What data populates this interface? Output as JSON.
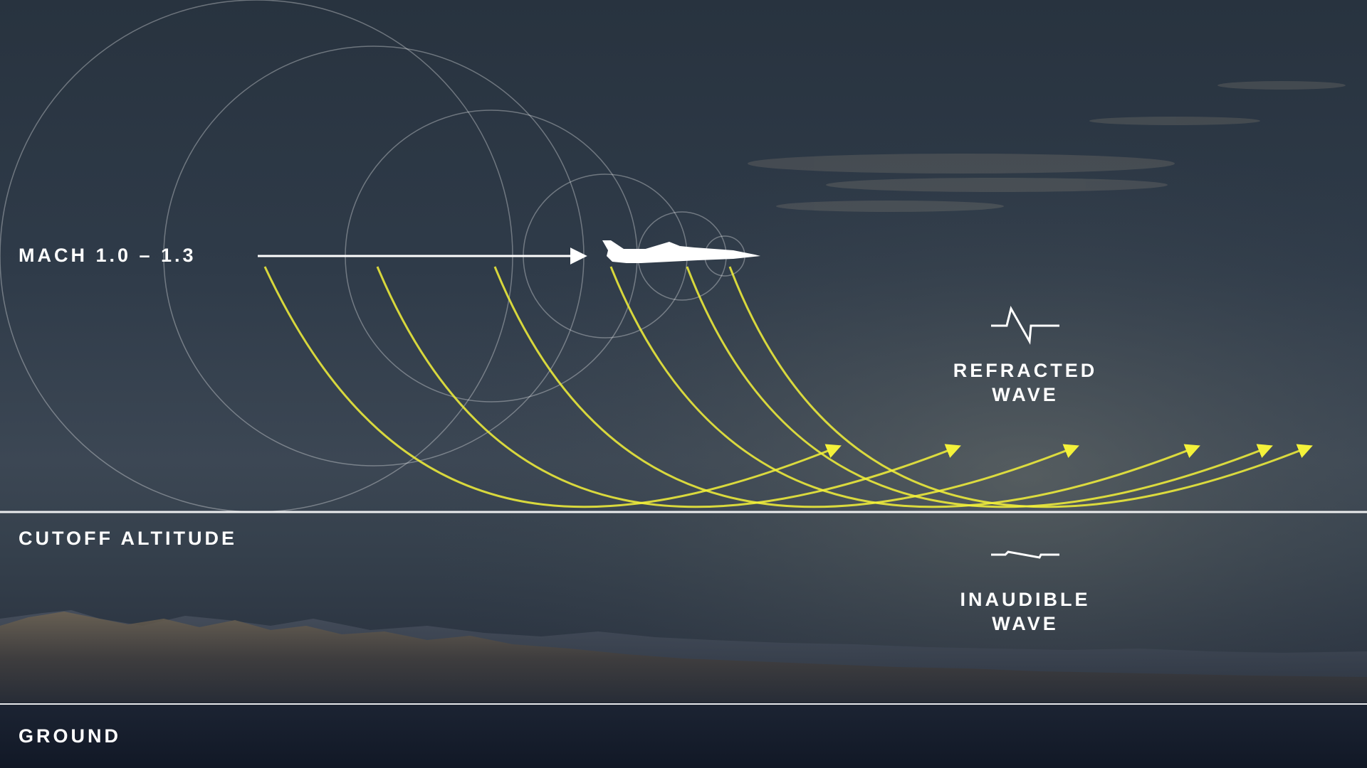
{
  "colors": {
    "wave": "#f4f23a",
    "line": "#ffffff",
    "ring": "#ffffff"
  },
  "labels": {
    "speed": "MACH 1.0 – 1.3",
    "cutoff": "CUTOFF ALTITUDE",
    "ground": "GROUND"
  },
  "legend": {
    "refracted_line1": "REFRACTED",
    "refracted_line2": "WAVE",
    "inaudible_line1": "INAUDIBLE",
    "inaudible_line2": "WAVE"
  },
  "icons": {
    "aircraft": "aircraft-silhouette-icon",
    "refracted": "refracted-wave-icon",
    "inaudible": "inaudible-wave-icon"
  }
}
